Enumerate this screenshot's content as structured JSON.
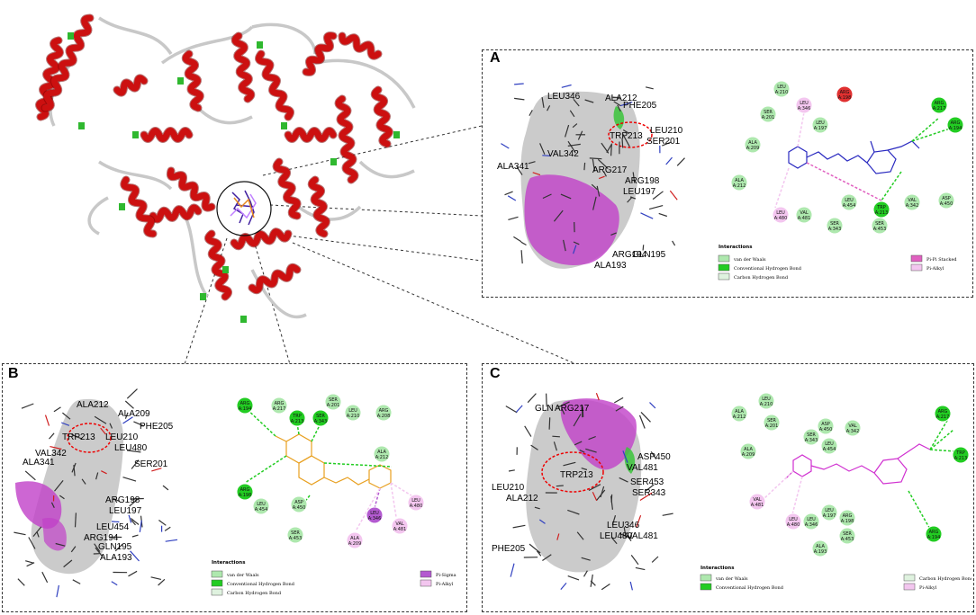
{
  "colors": {
    "helix": "#cc1010",
    "coil": "#c8c8c8",
    "turn": "#2fb82f",
    "vdw": "#aee8ae",
    "hbond": "#22cc22",
    "chbond": "#dff2df",
    "pipi": "#e060c0",
    "pialkyl": "#f3c6ef",
    "pisigma": "#b35ad0",
    "unfav": "#e03030",
    "ligandA": "#2a2ac0",
    "ligandB": "#e8a020",
    "ligandC": "#d030d0"
  },
  "panels": {
    "A": {
      "label": "A",
      "labels3d": [
        "LEU346",
        "ALA212",
        "PHE205",
        "LEU210",
        "TRP213",
        "SER201",
        "VAL342",
        "ALA341",
        "ARG217",
        "ARG198",
        "LEU197",
        "ARG194",
        "GLN195",
        "ALA193"
      ],
      "residues": [
        {
          "name": "LEU",
          "id": "A:210",
          "type": "vdw"
        },
        {
          "name": "LEU",
          "id": "A:346",
          "type": "pialkyl"
        },
        {
          "name": "ARG",
          "id": "A:198",
          "type": "unfav"
        },
        {
          "name": "SER",
          "id": "A:201",
          "type": "vdw"
        },
        {
          "name": "LEU",
          "id": "A:197",
          "type": "vdw"
        },
        {
          "name": "ARG",
          "id": "A:217",
          "type": "hbond"
        },
        {
          "name": "ARG",
          "id": "A:194",
          "type": "hbond"
        },
        {
          "name": "ALA",
          "id": "A:209",
          "type": "vdw"
        },
        {
          "name": "ALA",
          "id": "A:212",
          "type": "vdw"
        },
        {
          "name": "LEU",
          "id": "A:454",
          "type": "vdw"
        },
        {
          "name": "TRP",
          "id": "A:213",
          "type": "hbond"
        },
        {
          "name": "VAL",
          "id": "A:342",
          "type": "vdw"
        },
        {
          "name": "ASP",
          "id": "A:450",
          "type": "vdw"
        },
        {
          "name": "LEU",
          "id": "A:480",
          "type": "pialkyl"
        },
        {
          "name": "VAL",
          "id": "A:481",
          "type": "vdw"
        },
        {
          "name": "SER",
          "id": "A:343",
          "type": "vdw"
        },
        {
          "name": "SER",
          "id": "A:453",
          "type": "vdw"
        }
      ],
      "legend": {
        "title": "Interactions",
        "items": [
          "van der Waals",
          "Conventional Hydrogen Bond",
          "Carbon Hydrogen Bond",
          "Pi-Pi Stacked",
          "Pi-Alkyl"
        ]
      }
    },
    "B": {
      "label": "B",
      "labels3d": [
        "ALA212",
        "ALA209",
        "PHE205",
        "TRP213",
        "LEU210",
        "LEU480",
        "VAL342",
        "ALA341",
        "SER201",
        "ARG198",
        "LEU197",
        "LEU454",
        "ARG194",
        "GLN195",
        "ALA193"
      ],
      "residues": [
        {
          "name": "ARG",
          "id": "A:194",
          "type": "hbond"
        },
        {
          "name": "ARG",
          "id": "A:217",
          "type": "vdw"
        },
        {
          "name": "TRP",
          "id": "A:213",
          "type": "hbond"
        },
        {
          "name": "SER",
          "id": "A:343",
          "type": "hbond"
        },
        {
          "name": "SER",
          "id": "A:201",
          "type": "vdw"
        },
        {
          "name": "LEU",
          "id": "A:210",
          "type": "vdw"
        },
        {
          "name": "ARG",
          "id": "A:208",
          "type": "vdw"
        },
        {
          "name": "ALA",
          "id": "A:212",
          "type": "vdw"
        },
        {
          "name": "ARG",
          "id": "A:198",
          "type": "hbond"
        },
        {
          "name": "LEU",
          "id": "A:454",
          "type": "vdw"
        },
        {
          "name": "ASP",
          "id": "A:450",
          "type": "vdw"
        },
        {
          "name": "LEU",
          "id": "A:346",
          "type": "pisigma"
        },
        {
          "name": "LEU",
          "id": "A:480",
          "type": "pialkyl"
        },
        {
          "name": "VAL",
          "id": "A:481",
          "type": "pialkyl"
        },
        {
          "name": "SER",
          "id": "A:453",
          "type": "vdw"
        },
        {
          "name": "ALA",
          "id": "A:209",
          "type": "pialkyl"
        }
      ],
      "legend": {
        "title": "Interactions",
        "items": [
          "van der Waals",
          "Conventional Hydrogen Bond",
          "Carbon Hydrogen Bond",
          "Pi-Sigma",
          "Pi-Alkyl"
        ]
      }
    },
    "C": {
      "label": "C",
      "labels3d": [
        "GLN",
        "ARG217",
        "TRP213",
        "ASP450",
        "VAL481",
        "SER453",
        "SER343",
        "LEU210",
        "ALA212",
        "LEU346",
        "LEU480",
        "VAL481",
        "PHE205"
      ],
      "residues": [
        {
          "name": "ALA",
          "id": "A:212",
          "type": "vdw"
        },
        {
          "name": "LEU",
          "id": "A:210",
          "type": "vdw"
        },
        {
          "name": "SER",
          "id": "A:201",
          "type": "vdw"
        },
        {
          "name": "ASP",
          "id": "A:450",
          "type": "vdw"
        },
        {
          "name": "VAL",
          "id": "A:342",
          "type": "vdw"
        },
        {
          "name": "ARG",
          "id": "A:217",
          "type": "hbond"
        },
        {
          "name": "SER",
          "id": "A:343",
          "type": "vdw"
        },
        {
          "name": "LEU",
          "id": "A:454",
          "type": "vdw"
        },
        {
          "name": "TRP",
          "id": "A:213",
          "type": "hbond"
        },
        {
          "name": "ALA",
          "id": "A:209",
          "type": "vdw"
        },
        {
          "name": "VAL",
          "id": "A:481",
          "type": "pialkyl"
        },
        {
          "name": "LEU",
          "id": "A:197",
          "type": "vdw"
        },
        {
          "name": "ARG",
          "id": "A:198",
          "type": "vdw"
        },
        {
          "name": "LEU",
          "id": "A:480",
          "type": "pialkyl"
        },
        {
          "name": "LEU",
          "id": "A:346",
          "type": "vdw"
        },
        {
          "name": "SER",
          "id": "A:453",
          "type": "vdw"
        },
        {
          "name": "ALA",
          "id": "A:193",
          "type": "vdw"
        },
        {
          "name": "ARG",
          "id": "A:194",
          "type": "hbond"
        }
      ],
      "legend": {
        "title": "Interactions",
        "items": [
          "van der Waals",
          "Conventional Hydrogen Bond",
          "Carbon Hydrogen Bond",
          "Pi-Alkyl"
        ]
      }
    }
  }
}
